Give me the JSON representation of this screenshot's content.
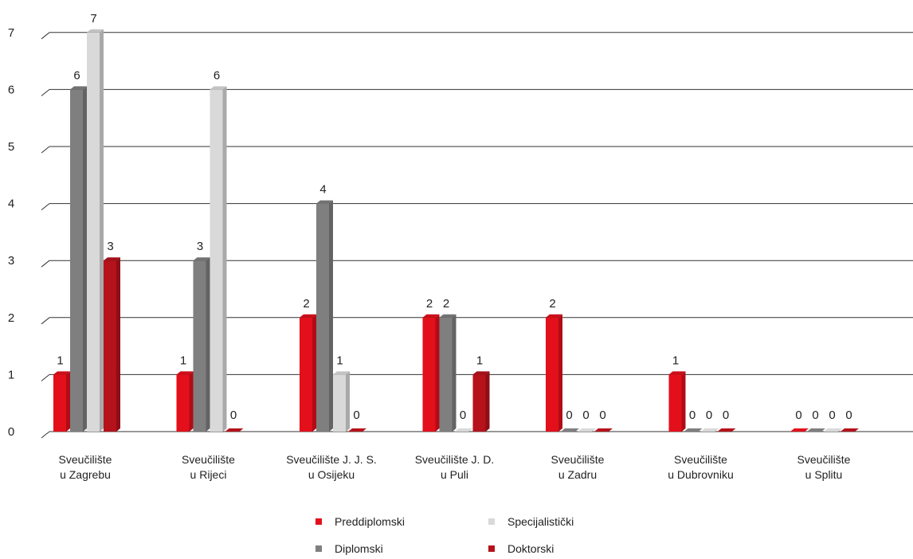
{
  "chart_data": {
    "type": "bar",
    "style": "3d-clustered",
    "categories": [
      [
        "Sveučilište",
        "u Zagrebu"
      ],
      [
        "Sveučilište",
        "u Rijeci"
      ],
      [
        "Sveučilište J. J. S.",
        "u Osijeku"
      ],
      [
        "Sveučilište J. D.",
        "u Puli"
      ],
      [
        "Sveučilište",
        "u Zadru"
      ],
      [
        "Sveučilište",
        "u Dubrovniku"
      ],
      [
        "Sveučilište",
        "u Splitu"
      ]
    ],
    "series": [
      {
        "name": "Preddiplomski",
        "color": "#e3101b",
        "values": [
          1,
          1,
          2,
          2,
          2,
          1,
          0
        ]
      },
      {
        "name": "Diplomski",
        "color": "#7f7f7f",
        "values": [
          6,
          3,
          4,
          2,
          0,
          0,
          0
        ]
      },
      {
        "name": "Specijalistički",
        "color": "#d9d9d9",
        "values": [
          7,
          6,
          1,
          0,
          0,
          0,
          0
        ]
      },
      {
        "name": "Doktorski",
        "color": "#b5121b",
        "values": [
          3,
          0,
          0,
          1,
          0,
          0,
          0
        ]
      }
    ],
    "ylim": [
      0,
      7
    ],
    "yticks": [
      0,
      1,
      2,
      3,
      4,
      5,
      6,
      7
    ],
    "grid": true,
    "legend_position": "bottom"
  }
}
